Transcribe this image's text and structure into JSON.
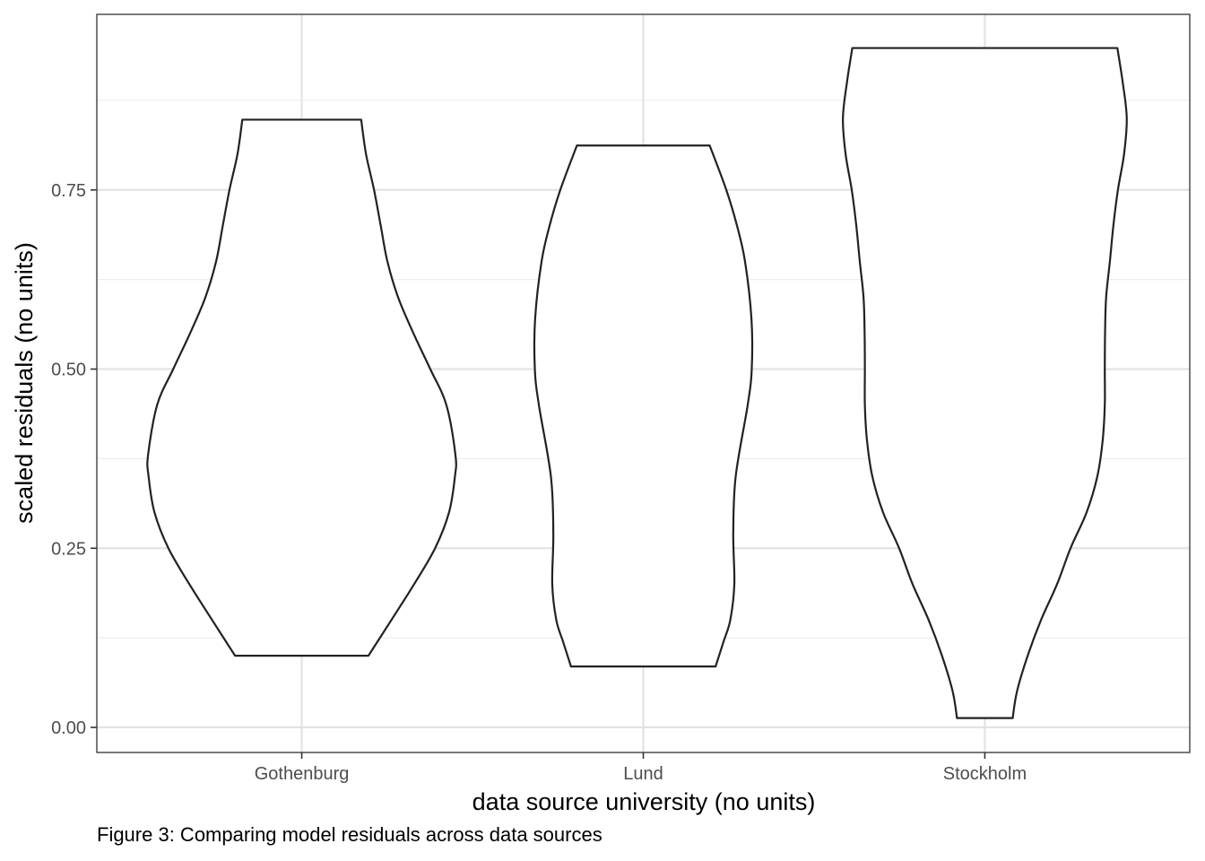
{
  "chart_data": {
    "type": "violin",
    "title": "",
    "xlabel": "data source university (no units)",
    "ylabel": "scaled residuals (no units)",
    "categories": [
      "Gothenburg",
      "Lund",
      "Stockholm"
    ],
    "ylim": [
      -0.035,
      0.995
    ],
    "yticks": [
      0.0,
      0.25,
      0.5,
      0.75
    ],
    "ytick_labels": [
      "0.00",
      "0.25",
      "0.50",
      "0.75"
    ],
    "grid": true,
    "legend": "none",
    "line_color": "#222222",
    "violins": [
      {
        "category": "Gothenburg",
        "min": 0.1,
        "max": 0.848,
        "density_profile": [
          [
            0.1,
            0.249
          ],
          [
            0.15,
            0.335
          ],
          [
            0.2,
            0.42
          ],
          [
            0.25,
            0.498
          ],
          [
            0.3,
            0.55
          ],
          [
            0.35,
            0.572
          ],
          [
            0.38,
            0.574
          ],
          [
            0.45,
            0.54
          ],
          [
            0.5,
            0.48
          ],
          [
            0.55,
            0.417
          ],
          [
            0.6,
            0.36
          ],
          [
            0.65,
            0.32
          ],
          [
            0.7,
            0.295
          ],
          [
            0.75,
            0.27
          ],
          [
            0.8,
            0.24
          ],
          [
            0.848,
            0.222
          ]
        ]
      },
      {
        "category": "Lund",
        "min": 0.085,
        "max": 0.812,
        "density_profile": [
          [
            0.085,
            0.27
          ],
          [
            0.12,
            0.3
          ],
          [
            0.15,
            0.325
          ],
          [
            0.2,
            0.34
          ],
          [
            0.27,
            0.336
          ],
          [
            0.35,
            0.345
          ],
          [
            0.45,
            0.39
          ],
          [
            0.5,
            0.405
          ],
          [
            0.57,
            0.404
          ],
          [
            0.65,
            0.38
          ],
          [
            0.7,
            0.35
          ],
          [
            0.75,
            0.31
          ],
          [
            0.812,
            0.248
          ]
        ]
      },
      {
        "category": "Stockholm",
        "min": 0.013,
        "max": 0.948,
        "density_profile": [
          [
            0.013,
            0.104
          ],
          [
            0.05,
            0.12
          ],
          [
            0.1,
            0.16
          ],
          [
            0.15,
            0.21
          ],
          [
            0.2,
            0.27
          ],
          [
            0.25,
            0.32
          ],
          [
            0.3,
            0.38
          ],
          [
            0.35,
            0.42
          ],
          [
            0.4,
            0.44
          ],
          [
            0.45,
            0.448
          ],
          [
            0.5,
            0.448
          ],
          [
            0.55,
            0.449
          ],
          [
            0.6,
            0.453
          ],
          [
            0.65,
            0.467
          ],
          [
            0.7,
            0.48
          ],
          [
            0.75,
            0.497
          ],
          [
            0.8,
            0.52
          ],
          [
            0.85,
            0.53
          ],
          [
            0.9,
            0.515
          ],
          [
            0.948,
            0.495
          ]
        ]
      }
    ]
  },
  "caption": "Figure 3: Comparing model residuals across data sources"
}
